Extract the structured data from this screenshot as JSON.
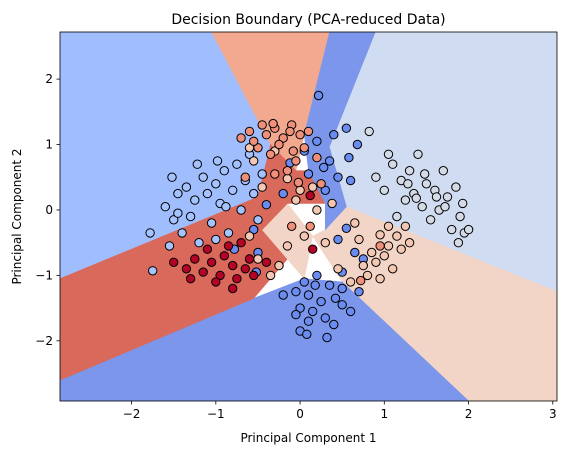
{
  "chart_data": {
    "type": "scatter",
    "title": "Decision Boundary (PCA-reduced Data)",
    "xlabel": "Principal Component 1",
    "ylabel": "Principal Component 2",
    "xlim": [
      -2.85,
      3.05
    ],
    "ylim": [
      -2.92,
      2.72
    ],
    "xticks": [
      -2,
      -1,
      0,
      1,
      2,
      3
    ],
    "yticks": [
      -2,
      -1,
      0,
      1,
      2
    ],
    "grid": false,
    "colormap": "coolwarm",
    "class_colors": {
      "0": "#6a8bef",
      "1": "#a5c3fe",
      "2": "#d5dbe6",
      "3": "#f3c7b1",
      "4": "#f0907a",
      "5": "#b40426"
    },
    "region_colors": {
      "0": "#7b96ea",
      "1": "#a0bdfd",
      "2": "#d0dcf2",
      "3": "#f3d5c7",
      "4": "#f2a98f",
      "5": "#d9695b"
    },
    "decision_regions": [
      {
        "class": 1,
        "polygon": [
          [
            -2.85,
            2.72
          ],
          [
            -1.05,
            2.72
          ],
          [
            -0.35,
            1.0
          ],
          [
            -0.5,
            0.2
          ],
          [
            -2.85,
            -1.05
          ]
        ]
      },
      {
        "class": 4,
        "polygon": [
          [
            -1.05,
            2.72
          ],
          [
            0.35,
            2.72
          ],
          [
            0.05,
            1.15
          ],
          [
            -0.05,
            0.6
          ],
          [
            -0.35,
            1.0
          ]
        ]
      },
      {
        "class": 0,
        "polygon": [
          [
            0.35,
            2.72
          ],
          [
            0.9,
            2.72
          ],
          [
            0.35,
            0.95
          ],
          [
            0.1,
            0.6
          ],
          [
            0.05,
            1.15
          ]
        ]
      },
      {
        "class": 2,
        "polygon": [
          [
            0.9,
            2.72
          ],
          [
            3.05,
            2.72
          ],
          [
            3.05,
            -1.25
          ],
          [
            0.55,
            0.05
          ],
          [
            0.35,
            0.95
          ]
        ]
      },
      {
        "class": 3,
        "polygon": [
          [
            0.55,
            0.05
          ],
          [
            3.05,
            -1.25
          ],
          [
            3.05,
            -2.92
          ],
          [
            2.0,
            -2.92
          ],
          [
            0.5,
            -1.1
          ],
          [
            0.15,
            -0.4
          ],
          [
            0.3,
            -0.3
          ]
        ]
      },
      {
        "class": 0,
        "polygon": [
          [
            2.0,
            -2.92
          ],
          [
            -2.85,
            -2.92
          ],
          [
            -2.85,
            -2.6
          ],
          [
            -0.55,
            -1.35
          ],
          [
            0.05,
            -1.05
          ],
          [
            0.5,
            -1.1
          ]
        ]
      },
      {
        "class": 5,
        "polygon": [
          [
            -2.85,
            -1.05
          ],
          [
            -0.5,
            0.2
          ],
          [
            -0.45,
            -0.3
          ],
          [
            -0.15,
            -0.75
          ],
          [
            -0.55,
            -1.35
          ],
          [
            -2.85,
            -2.6
          ]
        ]
      },
      {
        "class": 3,
        "polygon": [
          [
            -0.45,
            -0.3
          ],
          [
            -0.15,
            0.1
          ],
          [
            0.15,
            -0.4
          ],
          [
            0.05,
            -1.05
          ],
          [
            -0.15,
            -0.75
          ]
        ]
      },
      {
        "class": 5,
        "polygon": [
          [
            -0.5,
            0.2
          ],
          [
            -0.35,
            1.0
          ],
          [
            -0.05,
            0.6
          ],
          [
            0.1,
            0.6
          ],
          [
            0.3,
            0.1
          ],
          [
            -0.15,
            0.1
          ],
          [
            -0.45,
            -0.3
          ]
        ]
      },
      {
        "class": 0,
        "polygon": [
          [
            0.1,
            0.6
          ],
          [
            0.35,
            0.95
          ],
          [
            0.55,
            0.05
          ],
          [
            0.3,
            -0.3
          ],
          [
            0.3,
            0.1
          ]
        ]
      }
    ],
    "points": [
      {
        "x": -1.75,
        "y": -0.93,
        "c": 1
      },
      {
        "x": -1.78,
        "y": -0.35,
        "c": 1
      },
      {
        "x": -1.6,
        "y": 0.05,
        "c": 1
      },
      {
        "x": -1.55,
        "y": -0.55,
        "c": 1
      },
      {
        "x": -1.5,
        "y": -0.15,
        "c": 1
      },
      {
        "x": -1.45,
        "y": 0.25,
        "c": 1
      },
      {
        "x": -1.4,
        "y": -0.35,
        "c": 1
      },
      {
        "x": -1.35,
        "y": 0.35,
        "c": 1
      },
      {
        "x": -1.3,
        "y": -0.1,
        "c": 1
      },
      {
        "x": -1.25,
        "y": 0.15,
        "c": 1
      },
      {
        "x": -1.2,
        "y": -0.5,
        "c": 1
      },
      {
        "x": -1.15,
        "y": 0.5,
        "c": 1
      },
      {
        "x": -1.1,
        "y": 0.25,
        "c": 1
      },
      {
        "x": -1.05,
        "y": -0.2,
        "c": 1
      },
      {
        "x": -1.0,
        "y": 0.4,
        "c": 1
      },
      {
        "x": -0.95,
        "y": 0.1,
        "c": 1
      },
      {
        "x": -0.9,
        "y": 0.6,
        "c": 1
      },
      {
        "x": -0.85,
        "y": -0.35,
        "c": 1
      },
      {
        "x": -0.8,
        "y": 0.3,
        "c": 1
      },
      {
        "x": -0.75,
        "y": 0.7,
        "c": 1
      },
      {
        "x": -0.7,
        "y": 0.0,
        "c": 1
      },
      {
        "x": -0.65,
        "y": 0.45,
        "c": 1
      },
      {
        "x": -0.6,
        "y": 0.85,
        "c": 1
      },
      {
        "x": -0.55,
        "y": 0.25,
        "c": 1
      },
      {
        "x": -0.5,
        "y": -0.15,
        "c": 1
      },
      {
        "x": -0.45,
        "y": 0.55,
        "c": 1
      },
      {
        "x": -1.52,
        "y": 0.5,
        "c": 1
      },
      {
        "x": -1.22,
        "y": 0.7,
        "c": 1
      },
      {
        "x": -0.98,
        "y": 0.75,
        "c": 1
      },
      {
        "x": -0.88,
        "y": 0.05,
        "c": 1
      },
      {
        "x": -1.45,
        "y": -0.05,
        "c": 1
      },
      {
        "x": -1.0,
        "y": -0.45,
        "c": 1
      },
      {
        "x": -0.78,
        "y": -0.6,
        "c": 0
      },
      {
        "x": -0.5,
        "y": -0.65,
        "c": 0
      },
      {
        "x": -0.4,
        "y": 0.08,
        "c": 0
      },
      {
        "x": -0.55,
        "y": -0.3,
        "c": 0
      },
      {
        "x": -0.2,
        "y": 0.25,
        "c": 0
      },
      {
        "x": 0.05,
        "y": 0.9,
        "c": 0
      },
      {
        "x": 0.2,
        "y": 1.05,
        "c": 0
      },
      {
        "x": 0.35,
        "y": 0.75,
        "c": 0
      },
      {
        "x": 0.45,
        "y": 0.5,
        "c": 0
      },
      {
        "x": 0.55,
        "y": 1.25,
        "c": 0
      },
      {
        "x": 0.6,
        "y": 0.45,
        "c": 0
      },
      {
        "x": 0.4,
        "y": 1.15,
        "c": 0
      },
      {
        "x": 0.22,
        "y": 1.75,
        "c": 0
      },
      {
        "x": 0.3,
        "y": 0.3,
        "c": 0
      },
      {
        "x": 0.55,
        "y": -0.28,
        "c": 0
      },
      {
        "x": 0.45,
        "y": -0.45,
        "c": 0
      },
      {
        "x": 0.65,
        "y": -0.65,
        "c": 0
      },
      {
        "x": 0.5,
        "y": -0.95,
        "c": 0
      },
      {
        "x": 0.05,
        "y": -1.1,
        "c": 0
      },
      {
        "x": 0.1,
        "y": -1.3,
        "c": 0
      },
      {
        "x": 0.2,
        "y": -1.0,
        "c": 0
      },
      {
        "x": 0.35,
        "y": -1.15,
        "c": 0
      },
      {
        "x": 0.42,
        "y": -1.35,
        "c": 0
      },
      {
        "x": 0.5,
        "y": -1.45,
        "c": 0
      },
      {
        "x": 0.0,
        "y": -1.5,
        "c": 0
      },
      {
        "x": 0.15,
        "y": -1.55,
        "c": 0
      },
      {
        "x": 0.25,
        "y": -1.4,
        "c": 0
      },
      {
        "x": 0.3,
        "y": -1.65,
        "c": 0
      },
      {
        "x": 0.4,
        "y": -1.75,
        "c": 0
      },
      {
        "x": -0.05,
        "y": -1.25,
        "c": 0
      },
      {
        "x": -0.05,
        "y": -1.6,
        "c": 0
      },
      {
        "x": 0.1,
        "y": -1.7,
        "c": 0
      },
      {
        "x": 0.6,
        "y": -1.55,
        "c": 0
      },
      {
        "x": 0.7,
        "y": -1.25,
        "c": 0
      },
      {
        "x": 0.18,
        "y": -1.15,
        "c": 0
      },
      {
        "x": 0.32,
        "y": -1.95,
        "c": 0
      },
      {
        "x": 0.0,
        "y": -1.85,
        "c": 0
      },
      {
        "x": -0.2,
        "y": -1.3,
        "c": 0
      },
      {
        "x": 0.75,
        "y": -0.75,
        "c": 0
      },
      {
        "x": -0.52,
        "y": -0.95,
        "c": 0
      },
      {
        "x": 0.08,
        "y": -1.9,
        "c": 0
      },
      {
        "x": 0.5,
        "y": -1.2,
        "c": 0
      },
      {
        "x": 0.68,
        "y": 1.0,
        "c": 0
      },
      {
        "x": 0.1,
        "y": 0.55,
        "c": 0
      },
      {
        "x": -0.12,
        "y": 0.72,
        "c": 0
      },
      {
        "x": 0.28,
        "y": 0.65,
        "c": 0
      },
      {
        "x": 0.58,
        "y": 0.8,
        "c": 0
      },
      {
        "x": 0.9,
        "y": 0.5,
        "c": 2
      },
      {
        "x": 1.0,
        "y": 0.3,
        "c": 2
      },
      {
        "x": 1.1,
        "y": 0.7,
        "c": 2
      },
      {
        "x": 1.2,
        "y": 0.45,
        "c": 2
      },
      {
        "x": 1.25,
        "y": 0.15,
        "c": 2
      },
      {
        "x": 1.3,
        "y": 0.6,
        "c": 2
      },
      {
        "x": 1.35,
        "y": 0.25,
        "c": 2
      },
      {
        "x": 1.4,
        "y": 0.85,
        "c": 2
      },
      {
        "x": 1.45,
        "y": 0.05,
        "c": 2
      },
      {
        "x": 1.5,
        "y": 0.4,
        "c": 2
      },
      {
        "x": 1.55,
        "y": -0.15,
        "c": 2
      },
      {
        "x": 1.6,
        "y": 0.3,
        "c": 2
      },
      {
        "x": 1.65,
        "y": 0.0,
        "c": 2
      },
      {
        "x": 1.7,
        "y": 0.6,
        "c": 2
      },
      {
        "x": 1.75,
        "y": 0.2,
        "c": 2
      },
      {
        "x": 1.8,
        "y": -0.3,
        "c": 2
      },
      {
        "x": 1.85,
        "y": 0.35,
        "c": 2
      },
      {
        "x": 1.9,
        "y": -0.1,
        "c": 2
      },
      {
        "x": 1.95,
        "y": -0.35,
        "c": 2
      },
      {
        "x": 2.0,
        "y": -0.3,
        "c": 2
      },
      {
        "x": 1.93,
        "y": 0.1,
        "c": 2
      },
      {
        "x": 1.15,
        "y": -0.1,
        "c": 2
      },
      {
        "x": 1.05,
        "y": 0.85,
        "c": 2
      },
      {
        "x": 1.28,
        "y": 0.4,
        "c": 2
      },
      {
        "x": 1.88,
        "y": -0.5,
        "c": 2
      },
      {
        "x": 1.62,
        "y": 0.2,
        "c": 2
      },
      {
        "x": 0.82,
        "y": 1.2,
        "c": 2
      },
      {
        "x": 1.48,
        "y": 0.55,
        "c": 2
      },
      {
        "x": 1.72,
        "y": 0.05,
        "c": 2
      },
      {
        "x": 1.38,
        "y": 0.18,
        "c": 2
      },
      {
        "x": 0.95,
        "y": -0.38,
        "c": 3
      },
      {
        "x": 1.05,
        "y": -0.55,
        "c": 3
      },
      {
        "x": 1.15,
        "y": -0.4,
        "c": 3
      },
      {
        "x": 1.25,
        "y": -0.25,
        "c": 3
      },
      {
        "x": 0.85,
        "y": -0.65,
        "c": 3
      },
      {
        "x": 0.75,
        "y": -0.85,
        "c": 3
      },
      {
        "x": 0.9,
        "y": -0.8,
        "c": 3
      },
      {
        "x": 1.0,
        "y": -0.7,
        "c": 3
      },
      {
        "x": 1.1,
        "y": -0.9,
        "c": 3
      },
      {
        "x": 1.2,
        "y": -0.6,
        "c": 3
      },
      {
        "x": 0.8,
        "y": -1.0,
        "c": 3
      },
      {
        "x": 0.95,
        "y": -1.05,
        "c": 3
      },
      {
        "x": 0.7,
        "y": -0.45,
        "c": 3
      },
      {
        "x": 0.45,
        "y": -0.9,
        "c": 3
      },
      {
        "x": 0.6,
        "y": -1.1,
        "c": 3
      },
      {
        "x": 0.3,
        "y": -0.5,
        "c": 3
      },
      {
        "x": 0.05,
        "y": -0.4,
        "c": 3
      },
      {
        "x": -0.15,
        "y": -0.55,
        "c": 3
      },
      {
        "x": -0.35,
        "y": -1.0,
        "c": 3
      },
      {
        "x": -0.6,
        "y": -0.4,
        "c": 3
      },
      {
        "x": -0.25,
        "y": -0.85,
        "c": 3
      },
      {
        "x": -0.5,
        "y": -0.75,
        "c": 3
      },
      {
        "x": -0.05,
        "y": 0.15,
        "c": 3
      },
      {
        "x": 0.2,
        "y": 0.0,
        "c": 3
      },
      {
        "x": -0.15,
        "y": 0.48,
        "c": 3
      },
      {
        "x": 0.0,
        "y": 0.3,
        "c": 3
      },
      {
        "x": -0.45,
        "y": 0.35,
        "c": 3
      },
      {
        "x": -0.55,
        "y": 0.75,
        "c": 3
      },
      {
        "x": 0.15,
        "y": 0.35,
        "c": 3
      },
      {
        "x": 0.38,
        "y": 0.1,
        "c": 3
      },
      {
        "x": -0.3,
        "y": 0.9,
        "c": 3
      },
      {
        "x": -0.6,
        "y": 0.95,
        "c": 3
      },
      {
        "x": 1.05,
        "y": -0.25,
        "c": 3
      },
      {
        "x": 0.65,
        "y": -0.2,
        "c": 3
      },
      {
        "x": 1.3,
        "y": -0.5,
        "c": 3
      },
      {
        "x": -0.7,
        "y": 1.1,
        "c": 4
      },
      {
        "x": -0.6,
        "y": 1.2,
        "c": 4
      },
      {
        "x": -0.5,
        "y": 0.95,
        "c": 4
      },
      {
        "x": -0.4,
        "y": 1.15,
        "c": 4
      },
      {
        "x": -0.3,
        "y": 1.25,
        "c": 4
      },
      {
        "x": -0.2,
        "y": 1.1,
        "c": 4
      },
      {
        "x": -0.1,
        "y": 1.3,
        "c": 4
      },
      {
        "x": 0.0,
        "y": 1.15,
        "c": 4
      },
      {
        "x": 0.1,
        "y": 1.2,
        "c": 4
      },
      {
        "x": -0.35,
        "y": 0.85,
        "c": 4
      },
      {
        "x": -0.05,
        "y": 0.75,
        "c": 4
      },
      {
        "x": -0.25,
        "y": 1.0,
        "c": 4
      },
      {
        "x": -0.15,
        "y": 0.6,
        "c": 4
      },
      {
        "x": -0.45,
        "y": 1.3,
        "c": 4
      },
      {
        "x": 0.05,
        "y": 0.95,
        "c": 4
      },
      {
        "x": -0.55,
        "y": 1.05,
        "c": 4
      },
      {
        "x": -0.08,
        "y": 0.9,
        "c": 4
      },
      {
        "x": 0.2,
        "y": 0.8,
        "c": 4
      },
      {
        "x": -0.3,
        "y": 0.55,
        "c": 4
      },
      {
        "x": 0.25,
        "y": 0.4,
        "c": 4
      },
      {
        "x": -0.02,
        "y": 0.42,
        "c": 4
      },
      {
        "x": -0.65,
        "y": 0.5,
        "c": 4
      },
      {
        "x": -0.1,
        "y": -0.25,
        "c": 4
      },
      {
        "x": 0.12,
        "y": -0.25,
        "c": 4
      },
      {
        "x": 0.95,
        "y": -0.55,
        "c": 4
      },
      {
        "x": 0.72,
        "y": -1.08,
        "c": 4
      },
      {
        "x": -0.32,
        "y": 1.32,
        "c": 4
      },
      {
        "x": -0.12,
        "y": 1.2,
        "c": 4
      },
      {
        "x": -1.5,
        "y": -0.8,
        "c": 5
      },
      {
        "x": -1.35,
        "y": -0.9,
        "c": 5
      },
      {
        "x": -1.25,
        "y": -0.75,
        "c": 5
      },
      {
        "x": -1.15,
        "y": -0.95,
        "c": 5
      },
      {
        "x": -1.05,
        "y": -0.8,
        "c": 5
      },
      {
        "x": -0.95,
        "y": -1.0,
        "c": 5
      },
      {
        "x": -0.9,
        "y": -0.7,
        "c": 5
      },
      {
        "x": -0.8,
        "y": -0.85,
        "c": 5
      },
      {
        "x": -0.75,
        "y": -1.05,
        "c": 5
      },
      {
        "x": -0.65,
        "y": -0.9,
        "c": 5
      },
      {
        "x": -0.6,
        "y": -0.75,
        "c": 5
      },
      {
        "x": -0.85,
        "y": -0.55,
        "c": 5
      },
      {
        "x": -1.1,
        "y": -0.6,
        "c": 5
      },
      {
        "x": -0.7,
        "y": -0.5,
        "c": 5
      },
      {
        "x": -1.3,
        "y": -1.05,
        "c": 5
      },
      {
        "x": -1.0,
        "y": -1.1,
        "c": 5
      },
      {
        "x": -0.55,
        "y": -1.0,
        "c": 5
      },
      {
        "x": -0.4,
        "y": -0.8,
        "c": 5
      },
      {
        "x": -0.8,
        "y": -1.2,
        "c": 5
      },
      {
        "x": 0.12,
        "y": 0.22,
        "c": 5
      },
      {
        "x": 0.15,
        "y": -0.6,
        "c": 5
      }
    ]
  }
}
